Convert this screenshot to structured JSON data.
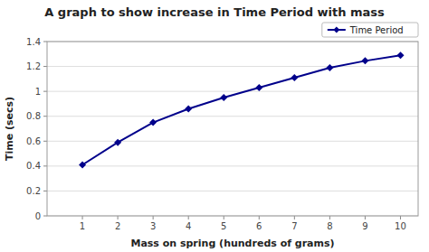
{
  "chart_data": {
    "type": "line",
    "title": "A graph to show increase in Time Period with mass",
    "x_label": "Mass on spring (hundreds of grams)",
    "y_label": "Time (secs)",
    "x": [
      1,
      2,
      3,
      4,
      5,
      6,
      7,
      8,
      9,
      10
    ],
    "series": [
      {
        "name": "Time Period",
        "color": "#00008B",
        "marker": "diamond",
        "values": [
          0.41,
          0.59,
          0.75,
          0.86,
          0.95,
          1.03,
          1.11,
          1.19,
          1.245,
          1.29
        ]
      }
    ],
    "xlim": [
      0,
      10.5
    ],
    "ylim": [
      0,
      1.4
    ],
    "xticks": [
      1,
      2,
      3,
      4,
      5,
      6,
      7,
      8,
      9,
      10
    ],
    "yticks": [
      0,
      0.2,
      0.4,
      0.6,
      0.8,
      1,
      1.2,
      1.4
    ],
    "grid": "y",
    "legend": "upper right"
  }
}
